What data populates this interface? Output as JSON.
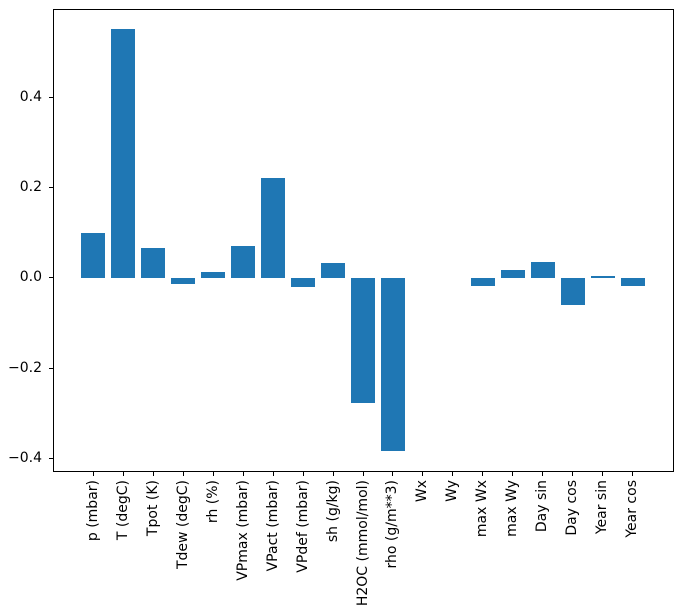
{
  "chart_data": {
    "type": "bar",
    "title": "",
    "xlabel": "",
    "ylabel": "",
    "categories": [
      "p (mbar)",
      "T (degC)",
      "Tpot (K)",
      "Tdew (degC)",
      "rh (%)",
      "VPmax (mbar)",
      "VPact (mbar)",
      "VPdef (mbar)",
      "sh (g/kg)",
      "H2OC (mmol/mol)",
      "rho (g/m**3)",
      "Wx",
      "Wy",
      "max Wx",
      "max Wy",
      "Day sin",
      "Day cos",
      "Year sin",
      "Year cos"
    ],
    "values": [
      0.1,
      0.551,
      0.065,
      -0.015,
      0.013,
      0.07,
      0.22,
      -0.02,
      0.033,
      -0.277,
      -0.383,
      0.0,
      0.0,
      -0.019,
      0.018,
      0.034,
      -0.061,
      0.004,
      -0.019
    ],
    "bar_color": "#1f77b4",
    "axis_color": "#000000",
    "text_color": "#000000",
    "ylim": [
      -0.428,
      0.595
    ],
    "yticks": [
      {
        "value": -0.4,
        "label": "−0.4"
      },
      {
        "value": -0.2,
        "label": "−0.2"
      },
      {
        "value": 0.0,
        "label": "0.0"
      },
      {
        "value": 0.2,
        "label": "0.2"
      },
      {
        "value": 0.4,
        "label": "0.4"
      }
    ],
    "x_tick_rotation": 90,
    "grid": false,
    "legend": null
  }
}
